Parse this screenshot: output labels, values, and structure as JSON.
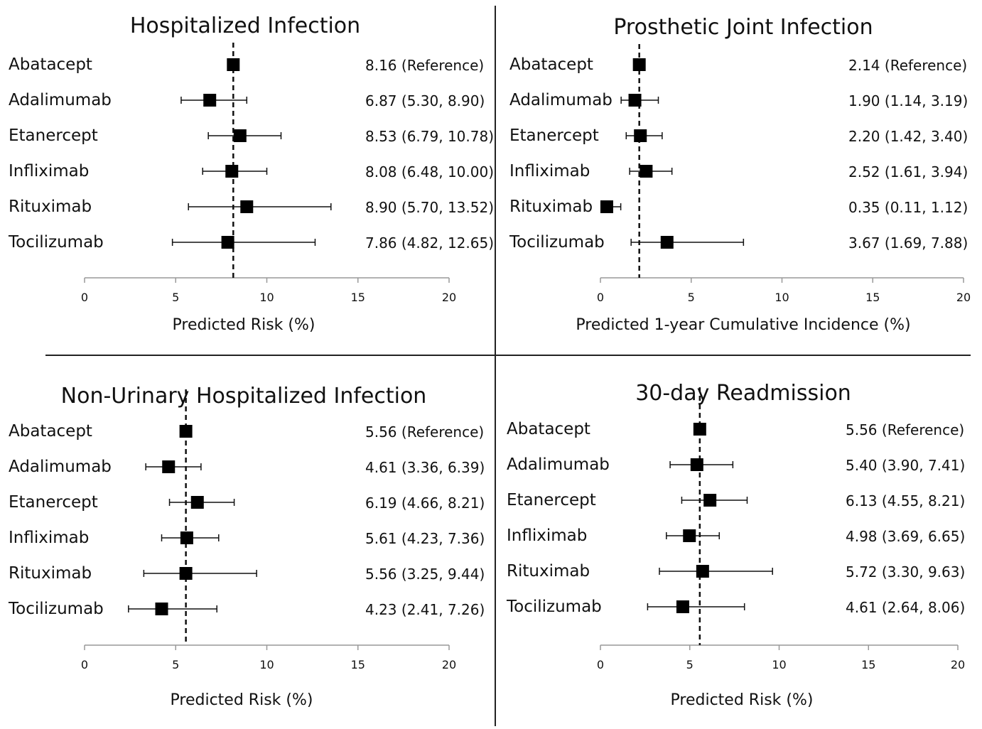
{
  "chart_data": [
    {
      "type": "forest",
      "title": "Hospitalized Infection",
      "xlabel": "Predicted Risk (%)",
      "xlim": [
        0,
        20
      ],
      "xticks": [
        0,
        5,
        10,
        15,
        20
      ],
      "reference_line": 8.16,
      "rows": [
        {
          "label": "Abatacept",
          "estimate": 8.16,
          "ci": null,
          "text": "8.16 (Reference)"
        },
        {
          "label": "Adalimumab",
          "estimate": 6.87,
          "ci": [
            5.3,
            8.9
          ],
          "text": "6.87 (5.30, 8.90)"
        },
        {
          "label": "Etanercept",
          "estimate": 8.53,
          "ci": [
            6.79,
            10.78
          ],
          "text": "8.53 (6.79, 10.78)"
        },
        {
          "label": "Infliximab",
          "estimate": 8.08,
          "ci": [
            6.48,
            10.0
          ],
          "text": "8.08 (6.48, 10.00)"
        },
        {
          "label": "Rituximab",
          "estimate": 8.9,
          "ci": [
            5.7,
            13.52
          ],
          "text": "8.90 (5.70, 13.52)"
        },
        {
          "label": "Tocilizumab",
          "estimate": 7.86,
          "ci": [
            4.82,
            12.65
          ],
          "text": "7.86 (4.82, 12.65)"
        }
      ]
    },
    {
      "type": "forest",
      "title": "Prosthetic Joint Infection",
      "xlabel": "Predicted 1-year Cumulative Incidence (%)",
      "xlim": [
        0,
        20
      ],
      "xticks": [
        0,
        5,
        10,
        15,
        20
      ],
      "reference_line": 2.14,
      "rows": [
        {
          "label": "Abatacept",
          "estimate": 2.14,
          "ci": null,
          "text": "2.14 (Reference)"
        },
        {
          "label": "Adalimumab",
          "estimate": 1.9,
          "ci": [
            1.14,
            3.19
          ],
          "text": "1.90 (1.14, 3.19)"
        },
        {
          "label": "Etanercept",
          "estimate": 2.2,
          "ci": [
            1.42,
            3.4
          ],
          "text": "2.20 (1.42, 3.40)"
        },
        {
          "label": "Infliximab",
          "estimate": 2.52,
          "ci": [
            1.61,
            3.94
          ],
          "text": "2.52 (1.61, 3.94)"
        },
        {
          "label": "Rituximab",
          "estimate": 0.35,
          "ci": [
            0.11,
            1.12
          ],
          "text": "0.35 (0.11, 1.12)"
        },
        {
          "label": "Tocilizumab",
          "estimate": 3.67,
          "ci": [
            1.69,
            7.88
          ],
          "text": "3.67 (1.69, 7.88)"
        }
      ]
    },
    {
      "type": "forest",
      "title": "Non-Urinary Hospitalized Infection",
      "xlabel": "Predicted Risk (%)",
      "xlim": [
        0,
        20
      ],
      "xticks": [
        0,
        5,
        10,
        15,
        20
      ],
      "reference_line": 5.56,
      "rows": [
        {
          "label": "Abatacept",
          "estimate": 5.56,
          "ci": null,
          "text": "5.56 (Reference)"
        },
        {
          "label": "Adalimumab",
          "estimate": 4.61,
          "ci": [
            3.36,
            6.39
          ],
          "text": "4.61 (3.36, 6.39)"
        },
        {
          "label": "Etanercept",
          "estimate": 6.19,
          "ci": [
            4.66,
            8.21
          ],
          "text": "6.19 (4.66, 8.21)"
        },
        {
          "label": "Infliximab",
          "estimate": 5.61,
          "ci": [
            4.23,
            7.36
          ],
          "text": "5.61 (4.23, 7.36)"
        },
        {
          "label": "Rituximab",
          "estimate": 5.56,
          "ci": [
            3.25,
            9.44
          ],
          "text": "5.56 (3.25, 9.44)"
        },
        {
          "label": "Tocilizumab",
          "estimate": 4.23,
          "ci": [
            2.41,
            7.26
          ],
          "text": "4.23 (2.41, 7.26)"
        }
      ]
    },
    {
      "type": "forest",
      "title": "30-day Readmission",
      "xlabel": "Predicted Risk (%)",
      "xlim": [
        0,
        20
      ],
      "xticks": [
        0,
        5,
        10,
        15,
        20
      ],
      "reference_line": 5.56,
      "rows": [
        {
          "label": "Abatacept",
          "estimate": 5.56,
          "ci": null,
          "text": "5.56 (Reference)"
        },
        {
          "label": "Adalimumab",
          "estimate": 5.4,
          "ci": [
            3.9,
            7.41
          ],
          "text": "5.40 (3.90, 7.41)"
        },
        {
          "label": "Etanercept",
          "estimate": 6.13,
          "ci": [
            4.55,
            8.21
          ],
          "text": "6.13 (4.55, 8.21)"
        },
        {
          "label": "Infliximab",
          "estimate": 4.98,
          "ci": [
            3.69,
            6.65
          ],
          "text": "4.98 (3.69, 6.65)"
        },
        {
          "label": "Rituximab",
          "estimate": 5.72,
          "ci": [
            3.3,
            9.63
          ],
          "text": "5.72 (3.30, 9.63)"
        },
        {
          "label": "Tocilizumab",
          "estimate": 4.61,
          "ci": [
            2.64,
            8.06
          ],
          "text": "4.61 (2.64, 8.06)"
        }
      ]
    }
  ]
}
